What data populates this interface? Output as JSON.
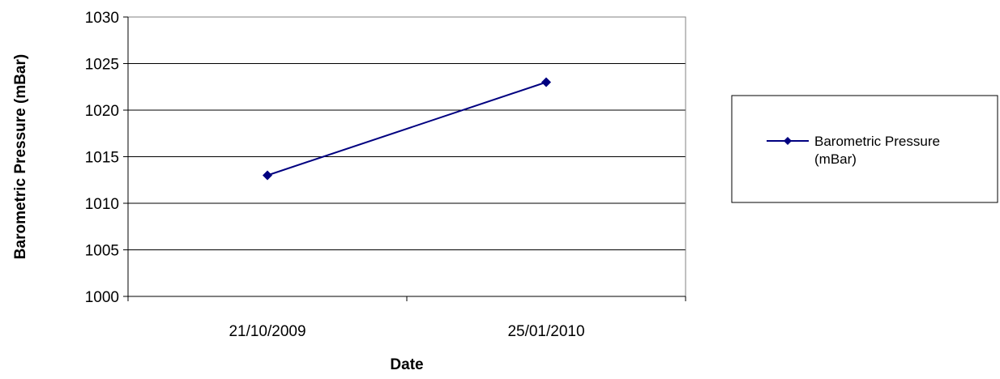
{
  "chart_data": {
    "type": "line",
    "categories": [
      "21/10/2009",
      "25/01/2010"
    ],
    "series": [
      {
        "name": "Barometric Pressure (mBar)",
        "values": [
          1013,
          1023
        ],
        "color": "#000080",
        "marker": "diamond"
      }
    ],
    "title": "",
    "xlabel": "Date",
    "ylabel": "Barometric Pressure (mBar)",
    "ylim": [
      1000,
      1030
    ],
    "yticks": [
      1000,
      1005,
      1010,
      1015,
      1020,
      1025,
      1030
    ],
    "grid": true,
    "legend_position": "right",
    "legend_lines": [
      "Barometric Pressure",
      "(mBar)"
    ]
  }
}
